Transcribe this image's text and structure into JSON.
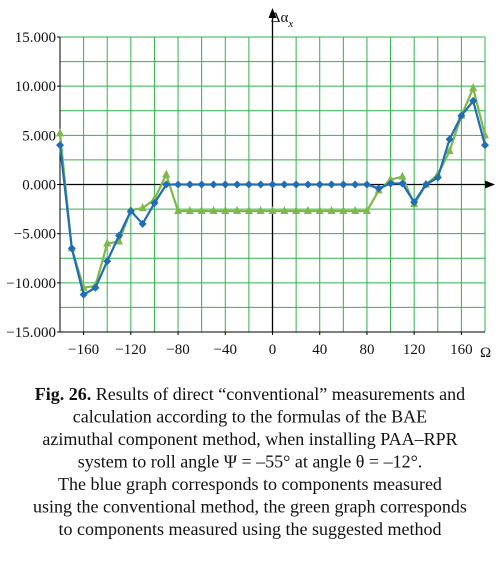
{
  "chart_data": {
    "type": "line",
    "ylabel": {
      "main": "Δα",
      "sub": "x"
    },
    "xlabel": "Ω",
    "x": [
      -180,
      -170,
      -160,
      -150,
      -140,
      -130,
      -120,
      -110,
      -100,
      -90,
      -80,
      -70,
      -60,
      -50,
      -40,
      -30,
      -20,
      -10,
      0,
      10,
      20,
      30,
      40,
      50,
      60,
      70,
      80,
      90,
      100,
      110,
      120,
      130,
      140,
      150,
      160,
      170,
      180
    ],
    "series": [
      {
        "color": "#1f6db5",
        "marker": "diamond",
        "values": [
          4,
          -6.5,
          -11.2,
          -10.5,
          -7.8,
          -5.2,
          -2.7,
          -4,
          -1.9,
          0,
          0,
          0,
          0,
          0,
          0,
          0,
          0,
          0,
          0,
          0,
          0,
          0,
          0,
          0,
          0,
          0,
          0,
          -0.4,
          0.1,
          0.1,
          -1.8,
          0,
          0.7,
          4.6,
          7,
          8.5,
          4
        ]
      },
      {
        "color": "#7cb84a",
        "marker": "triangle",
        "values": [
          5.2,
          -6.5,
          -10.5,
          -10.3,
          -6,
          -5.8,
          -2.6,
          -2.4,
          -1.5,
          1,
          -2.7,
          -2.7,
          -2.7,
          -2.7,
          -2.7,
          -2.7,
          -2.7,
          -2.7,
          -2.7,
          -2.7,
          -2.7,
          -2.7,
          -2.7,
          -2.7,
          -2.7,
          -2.7,
          -2.7,
          -0.6,
          0.5,
          0.8,
          -2,
          0,
          1,
          3.4,
          7,
          9.8,
          5
        ]
      }
    ],
    "xlim": [
      -180,
      180
    ],
    "ylim": [
      -15,
      15
    ],
    "xticks": [
      {
        "value": -160,
        "label": "−160"
      },
      {
        "value": -120,
        "label": "−120"
      },
      {
        "value": -80,
        "label": "−80"
      },
      {
        "value": -40,
        "label": "−40"
      },
      0,
      40,
      80,
      120,
      160
    ],
    "yticks": [
      {
        "value": 15,
        "label": "15.000"
      },
      {
        "value": 10,
        "label": "10.000"
      },
      {
        "value": 5,
        "label": "5.000"
      },
      {
        "value": 0,
        "label": "0.000"
      },
      {
        "value": -5,
        "label": "−5.000"
      },
      {
        "value": -10,
        "label": "−10.000"
      },
      {
        "value": -15,
        "label": "−15.000"
      }
    ],
    "xgrid": [
      -180,
      -160,
      -140,
      -120,
      -100,
      -80,
      -60,
      -40,
      -20,
      0,
      20,
      40,
      60,
      80,
      100,
      120,
      140,
      160,
      180
    ],
    "ygrid": [
      -15,
      -12.5,
      -10,
      -7.5,
      -5,
      -2.5,
      0,
      2.5,
      5,
      7.5,
      10,
      12.5,
      15
    ],
    "grid_color": "#2fb24a",
    "caption": {
      "label": "Fig. 26.",
      "lines": [
        " Results of direct “conventional” measurements and",
        "calculation according to the formulas of the BAE",
        "azimuthal component method, when installing PAA–RPR",
        "system to roll angle Ψ = –55° at angle θ = –12°.",
        "The blue graph corresponds to components measured",
        "using the conventional method, the green graph corresponds",
        "to components measured using the suggested method"
      ]
    }
  }
}
